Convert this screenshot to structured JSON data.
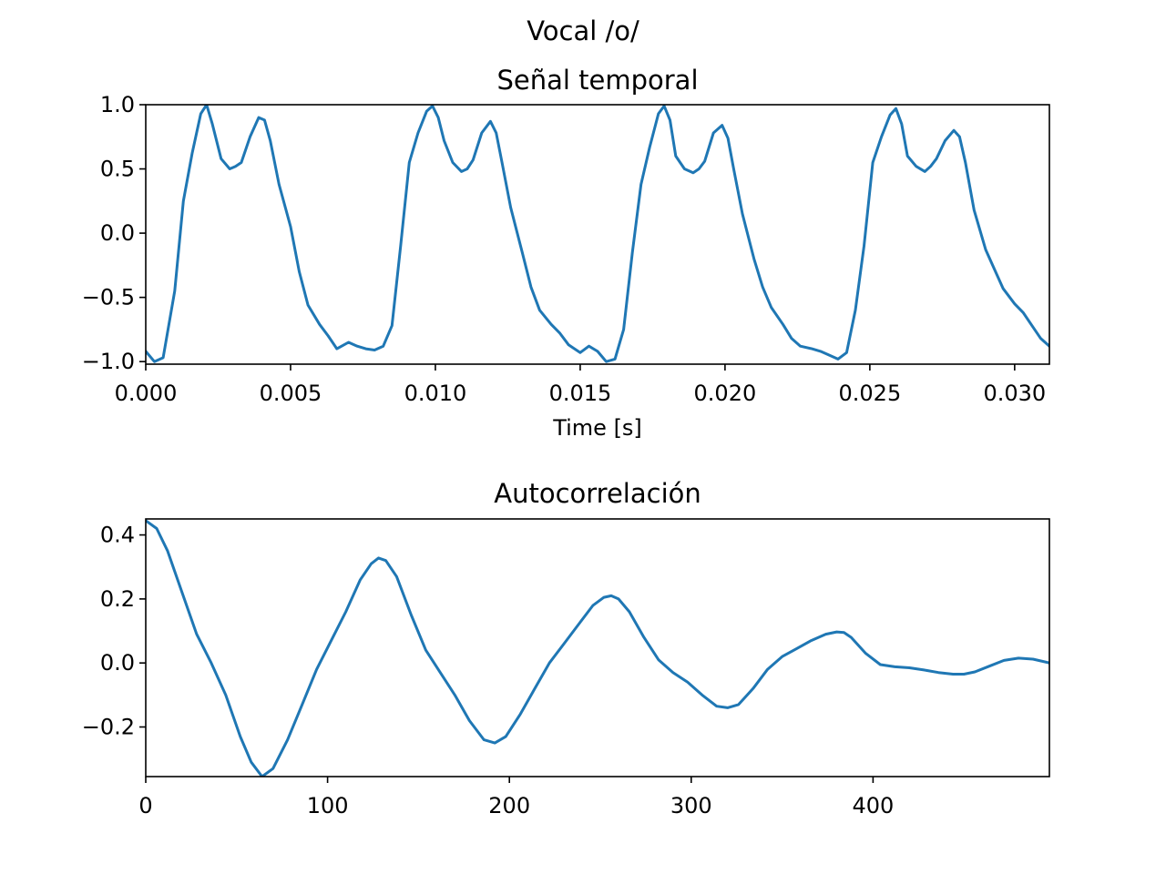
{
  "figure": {
    "suptitle": "Vocal /o/"
  },
  "chart_data": [
    {
      "type": "line",
      "title": "Señal temporal",
      "xlabel": "Time [s]",
      "ylabel": "",
      "xlim": [
        0,
        0.0312
      ],
      "ylim": [
        -1.02,
        1.0
      ],
      "xticks": [
        0.0,
        0.005,
        0.01,
        0.015,
        0.02,
        0.025,
        0.03
      ],
      "xtick_labels": [
        "0.000",
        "0.005",
        "0.010",
        "0.015",
        "0.020",
        "0.025",
        "0.030"
      ],
      "yticks": [
        1.0,
        0.5,
        0.0,
        -0.5,
        -1.0
      ],
      "ytick_labels": [
        "1.0",
        "0.5",
        "0.0",
        "−0.5",
        "−1.0"
      ],
      "grid": false,
      "color": "#1f77b4",
      "series": [
        {
          "x": [
            0.0,
            0.0003,
            0.0006,
            0.001,
            0.0013,
            0.0016,
            0.0019,
            0.0021,
            0.0023,
            0.0026,
            0.0029,
            0.0031,
            0.0033,
            0.0036,
            0.0039,
            0.0041,
            0.0043,
            0.0046,
            0.005,
            0.0053,
            0.0056,
            0.006,
            0.0063,
            0.0066,
            0.007,
            0.0073,
            0.0076,
            0.0079,
            0.0082,
            0.0085,
            0.0088,
            0.0091,
            0.0094,
            0.0097,
            0.0099,
            0.0101,
            0.0103,
            0.0106,
            0.0109,
            0.0111,
            0.0113,
            0.0116,
            0.0119,
            0.0121,
            0.0123,
            0.0126,
            0.013,
            0.0133,
            0.0136,
            0.014,
            0.0143,
            0.0146,
            0.015,
            0.0153,
            0.0156,
            0.0159,
            0.0162,
            0.0165,
            0.0168,
            0.0171,
            0.0174,
            0.0177,
            0.0179,
            0.0181,
            0.0183,
            0.0186,
            0.0189,
            0.0191,
            0.0193,
            0.0196,
            0.0199,
            0.0201,
            0.0203,
            0.0206,
            0.021,
            0.0213,
            0.0216,
            0.022,
            0.0223,
            0.0226,
            0.023,
            0.0233,
            0.0236,
            0.0239,
            0.0242,
            0.0245,
            0.0248,
            0.0251,
            0.0254,
            0.0257,
            0.0259,
            0.0261,
            0.0263,
            0.0266,
            0.0269,
            0.0271,
            0.0273,
            0.0276,
            0.0279,
            0.0281,
            0.0283,
            0.0286,
            0.029,
            0.0293,
            0.0296,
            0.03,
            0.0303,
            0.0306,
            0.0309,
            0.0312
          ],
          "y": [
            -0.92,
            -1.0,
            -0.97,
            -0.45,
            0.25,
            0.62,
            0.93,
            1.0,
            0.85,
            0.58,
            0.5,
            0.52,
            0.55,
            0.75,
            0.9,
            0.88,
            0.72,
            0.38,
            0.05,
            -0.3,
            -0.56,
            -0.71,
            -0.8,
            -0.9,
            -0.85,
            -0.88,
            -0.9,
            -0.91,
            -0.88,
            -0.72,
            -0.1,
            0.55,
            0.78,
            0.95,
            0.99,
            0.9,
            0.72,
            0.55,
            0.48,
            0.5,
            0.57,
            0.78,
            0.87,
            0.78,
            0.55,
            0.2,
            -0.15,
            -0.42,
            -0.6,
            -0.71,
            -0.78,
            -0.87,
            -0.93,
            -0.88,
            -0.92,
            -1.0,
            -0.98,
            -0.75,
            -0.15,
            0.38,
            0.67,
            0.93,
            0.99,
            0.88,
            0.6,
            0.5,
            0.47,
            0.5,
            0.56,
            0.78,
            0.84,
            0.74,
            0.5,
            0.15,
            -0.2,
            -0.42,
            -0.58,
            -0.71,
            -0.82,
            -0.88,
            -0.9,
            -0.92,
            -0.95,
            -0.98,
            -0.93,
            -0.6,
            -0.1,
            0.55,
            0.75,
            0.92,
            0.97,
            0.85,
            0.6,
            0.52,
            0.48,
            0.52,
            0.58,
            0.72,
            0.8,
            0.75,
            0.55,
            0.18,
            -0.13,
            -0.28,
            -0.43,
            -0.55,
            -0.62,
            -0.72,
            -0.82,
            -0.88
          ]
        }
      ]
    },
    {
      "type": "line",
      "title": "Autocorrelación",
      "xlabel": "",
      "ylabel": "",
      "xlim": [
        0,
        497
      ],
      "ylim": [
        -0.355,
        0.45
      ],
      "xticks": [
        0,
        100,
        200,
        300,
        400
      ],
      "xtick_labels": [
        "0",
        "100",
        "200",
        "300",
        "400"
      ],
      "yticks": [
        0.4,
        0.2,
        0.0,
        -0.2
      ],
      "ytick_labels": [
        "0.4",
        "0.2",
        "0.0",
        "−0.2"
      ],
      "grid": false,
      "color": "#1f77b4",
      "series": [
        {
          "x": [
            0,
            6,
            12,
            20,
            28,
            36,
            44,
            52,
            58,
            64,
            70,
            78,
            86,
            94,
            102,
            110,
            118,
            124,
            128,
            132,
            138,
            146,
            154,
            162,
            170,
            178,
            186,
            192,
            198,
            206,
            214,
            222,
            230,
            238,
            246,
            252,
            256,
            260,
            266,
            274,
            282,
            290,
            298,
            306,
            314,
            320,
            326,
            334,
            342,
            350,
            358,
            366,
            374,
            380,
            384,
            388,
            396,
            404,
            412,
            420,
            428,
            436,
            444,
            450,
            456,
            464,
            472,
            480,
            488,
            497
          ],
          "y": [
            0.445,
            0.42,
            0.35,
            0.22,
            0.09,
            0.0,
            -0.1,
            -0.23,
            -0.31,
            -0.355,
            -0.33,
            -0.24,
            -0.13,
            -0.02,
            0.07,
            0.16,
            0.26,
            0.31,
            0.328,
            0.32,
            0.27,
            0.15,
            0.04,
            -0.03,
            -0.1,
            -0.18,
            -0.24,
            -0.25,
            -0.23,
            -0.16,
            -0.08,
            0.0,
            0.06,
            0.12,
            0.18,
            0.205,
            0.21,
            0.2,
            0.16,
            0.08,
            0.01,
            -0.03,
            -0.06,
            -0.1,
            -0.135,
            -0.14,
            -0.13,
            -0.08,
            -0.02,
            0.02,
            0.045,
            0.07,
            0.09,
            0.097,
            0.095,
            0.08,
            0.03,
            -0.005,
            -0.012,
            -0.015,
            -0.022,
            -0.03,
            -0.035,
            -0.035,
            -0.028,
            -0.01,
            0.008,
            0.015,
            0.012,
            0.0
          ]
        }
      ]
    }
  ]
}
